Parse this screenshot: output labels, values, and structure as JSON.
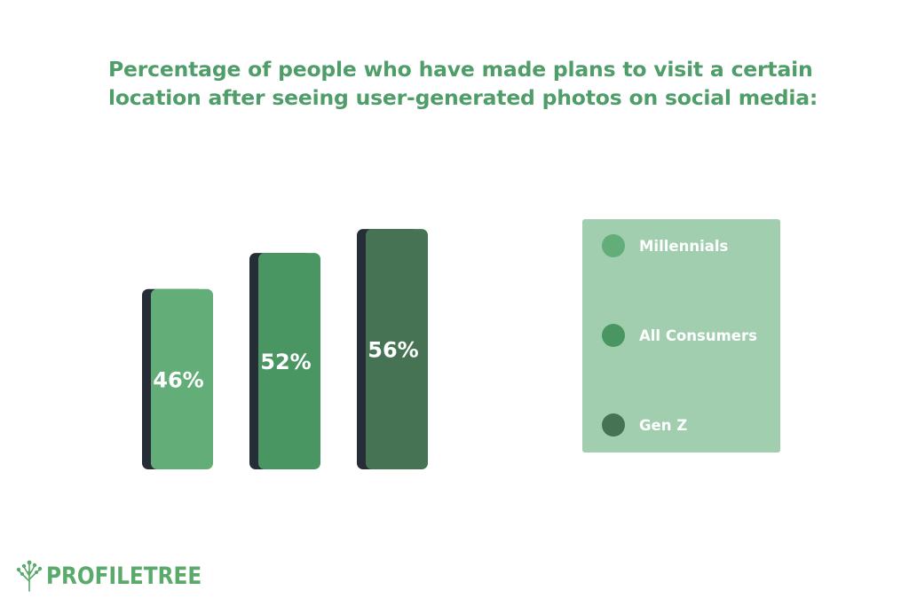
{
  "chart_data": {
    "type": "bar",
    "title_lines": [
      "Percentage of people who have made plans to visit a certain",
      "location after seeing user-generated photos on social media:"
    ],
    "categories": [
      "Millennials",
      "All Consumers",
      "Gen Z"
    ],
    "values": [
      46,
      52,
      56
    ],
    "value_labels": [
      "46%",
      "52%",
      "56%"
    ],
    "colors": [
      "#63ad79",
      "#4a9663",
      "#457353"
    ],
    "shadow_color": "#262d37",
    "legend": "right",
    "grid": false
  },
  "legend": {
    "items": [
      {
        "label": "Millennials",
        "color": "#63ad79"
      },
      {
        "label": "All Consumers",
        "color": "#4a9663"
      },
      {
        "label": "Gen Z",
        "color": "#457353"
      }
    ]
  },
  "brand": {
    "logo_text": "PROFILETREE",
    "logo_icon": "tree-icon",
    "color": "#5aaa6c"
  }
}
